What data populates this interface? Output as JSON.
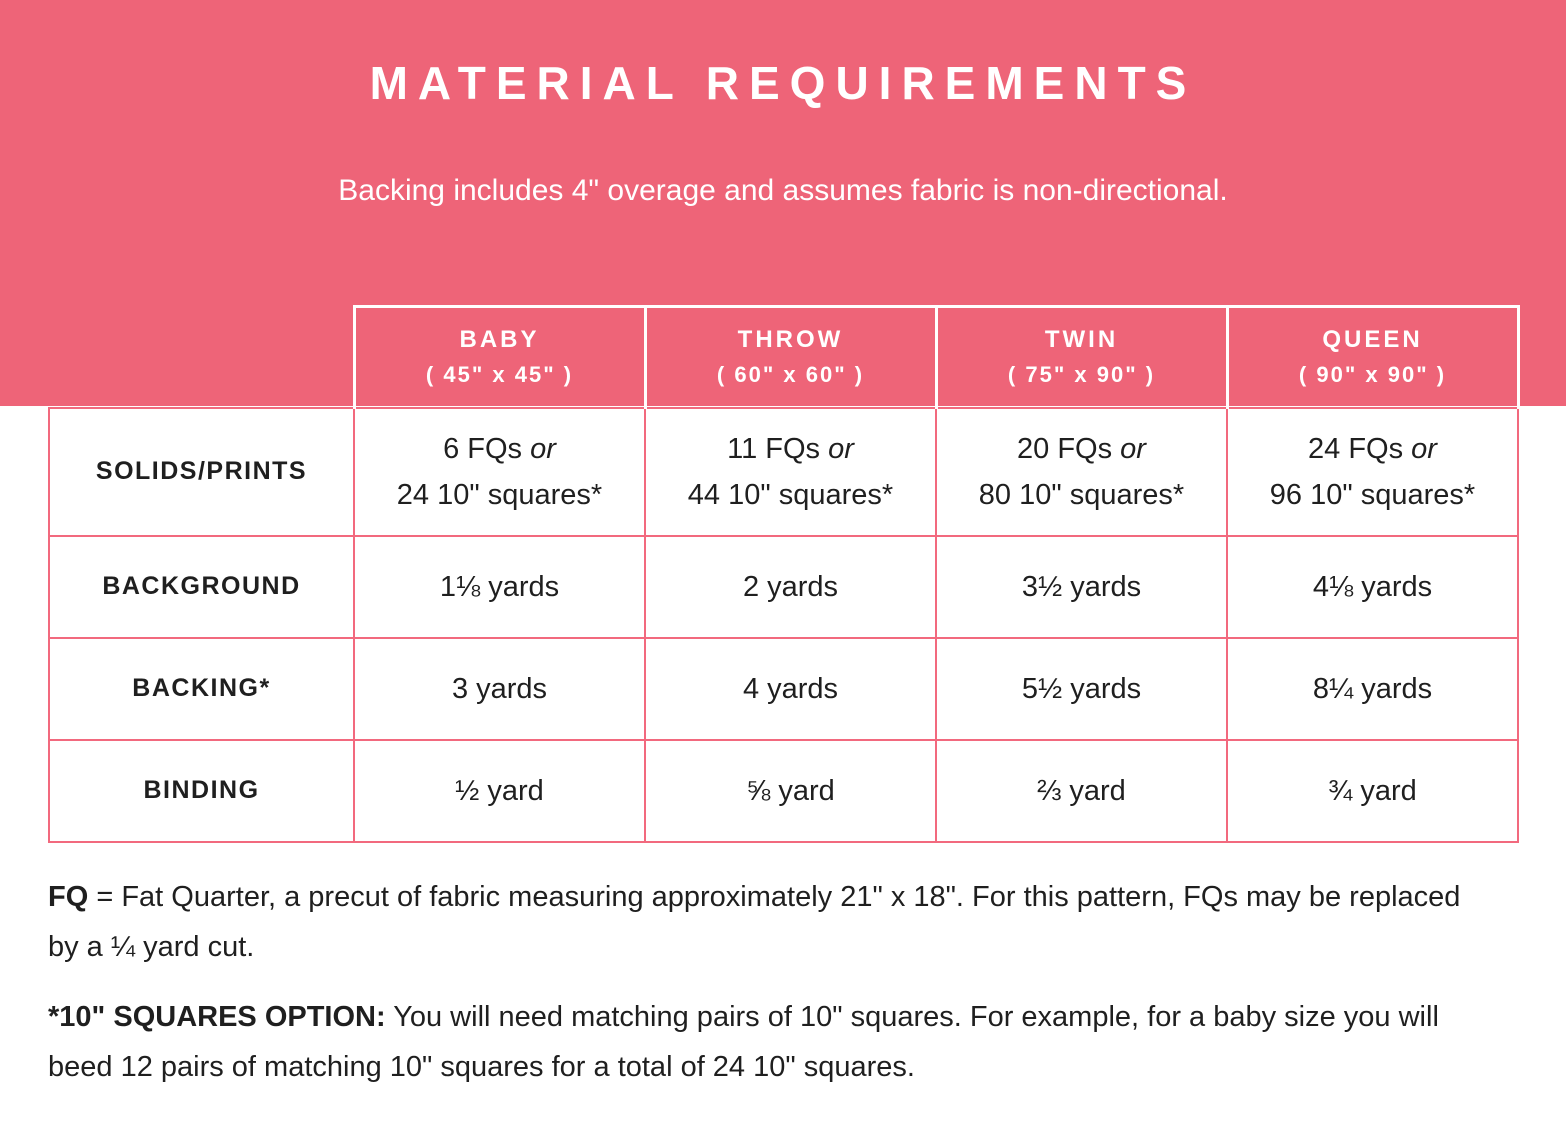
{
  "colors": {
    "pink": "#ee6478",
    "border-pink": "#f2697e",
    "ink": "#1f1f1f",
    "white": "#ffffff"
  },
  "banner": {
    "title": "MATERIAL REQUIREMENTS",
    "subtitle": "Backing includes 4\" overage and assumes fabric is non-directional."
  },
  "table": {
    "columns": [
      {
        "label": "BABY",
        "size": "( 45\" x 45\" )"
      },
      {
        "label": "THROW",
        "size": "( 60\" x 60\" )"
      },
      {
        "label": "TWIN",
        "size": "( 75\" x 90\" )"
      },
      {
        "label": "QUEEN",
        "size": "( 90\" x 90\" )"
      }
    ],
    "rows": [
      {
        "label": "SOLIDS/PRINTS",
        "cells": [
          {
            "line1": "6 FQs ",
            "line1_italic": "or",
            "line2": "24 10\" squares*"
          },
          {
            "line1": "11 FQs ",
            "line1_italic": "or",
            "line2": "44 10\" squares*"
          },
          {
            "line1": "20 FQs ",
            "line1_italic": "or",
            "line2": "80 10\" squares*"
          },
          {
            "line1": "24 FQs ",
            "line1_italic": "or",
            "line2": "96 10\" squares*"
          }
        ]
      },
      {
        "label": "BACKGROUND",
        "cells": [
          {
            "line1": "1⅛ yards"
          },
          {
            "line1": "2 yards"
          },
          {
            "line1": "3½ yards"
          },
          {
            "line1": "4⅛ yards"
          }
        ]
      },
      {
        "label": "BACKING*",
        "cells": [
          {
            "line1": "3 yards"
          },
          {
            "line1": "4 yards"
          },
          {
            "line1": "5½ yards"
          },
          {
            "line1": "8¼ yards"
          }
        ]
      },
      {
        "label": "BINDING",
        "cells": [
          {
            "line1": "½ yard"
          },
          {
            "line1": "⅝ yard"
          },
          {
            "line1": "⅔ yard"
          },
          {
            "line1": "¾ yard"
          }
        ]
      }
    ]
  },
  "notes": [
    {
      "bold": "FQ",
      "rest": " = Fat Quarter, a precut of fabric measuring approximately 21\" x 18\". For this pattern, FQs may be replaced by a ¼ yard cut."
    },
    {
      "bold": "*10\" SQUARES OPTION:",
      "rest": " You will need matching pairs of 10\" squares. For example, for a baby size you will beed 12 pairs of matching 10\" squares for a total of 24 10\" squares."
    }
  ]
}
